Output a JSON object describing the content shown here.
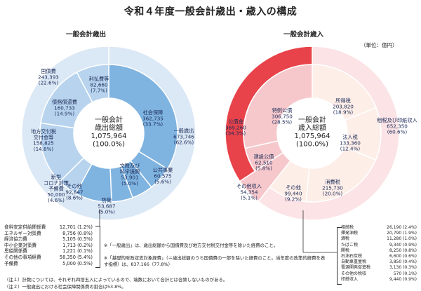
{
  "title": "令和４年度一般会計歳出・歳入の構成",
  "unit": "（単位：億円）",
  "colors": {
    "exp_inner": "#7fb3e0",
    "exp_mid": "#b7d3ee",
    "exp_outer": "#dbe8f5",
    "rev_red": "#e8434a",
    "rev_pink": "#f6c8cc",
    "rev_light": "#fbe3e6",
    "rev_peach": "#fdeee8"
  },
  "chart_data": [
    {
      "type": "pie",
      "title": "一般会計歳出",
      "center_text": [
        "一般会計",
        "歳出総額",
        "1,075,964",
        "(100.0%)"
      ],
      "total": 1075964,
      "slices": [
        {
          "label": "社会保障",
          "value": 362735,
          "percent": "33.7%",
          "ring": "inner"
        },
        {
          "label": "公共事業",
          "value": 60575,
          "percent": "5.6%",
          "ring": "inner"
        },
        {
          "label": "文教及び科学振興",
          "value": 53901,
          "percent": "5.0%",
          "ring": "inner"
        },
        {
          "label": "防衛",
          "value": 53687,
          "percent": "5.0%",
          "ring": "inner"
        },
        {
          "label": "その他",
          "value": 92847,
          "percent": "8.6%",
          "ring": "inner"
        },
        {
          "label": "新型コロナ対策予備費",
          "value": 50000,
          "percent": "4.6%",
          "ring": "mid"
        },
        {
          "label": "地方交付税交付金等",
          "value": 158825,
          "percent": "14.8%",
          "ring": "mid"
        },
        {
          "label": "債務償還費",
          "value": 160733,
          "percent": "14.9%",
          "ring": "mid"
        },
        {
          "label": "利払費等",
          "value": 82660,
          "percent": "7.7%",
          "ring": "mid"
        },
        {
          "label": "国債費",
          "value": 243393,
          "percent": "22.6%",
          "ring": "outer"
        },
        {
          "label": "一般歳出",
          "value": 673746,
          "percent": "62.6%",
          "ring": "outer"
        }
      ],
      "breakdown": [
        {
          "label": "食料安定供給関係費",
          "value": "12,701",
          "percent": "(1.2%)"
        },
        {
          "label": "エネルギー対策費",
          "value": "8,756",
          "percent": "(0.8%)"
        },
        {
          "label": "経済協力費",
          "value": "5,105",
          "percent": "(0.5%)"
        },
        {
          "label": "中小企業対策費",
          "value": "1,713",
          "percent": "(0.2%)"
        },
        {
          "label": "恩給関係費",
          "value": "1,221",
          "percent": "(0.1%)"
        },
        {
          "label": "その他の事項経費",
          "value": "58,350",
          "percent": "(5.4%)"
        },
        {
          "label": "予備費",
          "value": "5,000",
          "percent": "(0.5%)"
        }
      ]
    },
    {
      "type": "pie",
      "title": "一般会計歳入",
      "center_text": [
        "一般会計",
        "歳入総額",
        "1,075,964",
        "(100.0%)"
      ],
      "total": 1075964,
      "slices": [
        {
          "label": "所得税",
          "value": 203820,
          "percent": "18.9%",
          "ring": "inner"
        },
        {
          "label": "法人税",
          "value": 133360,
          "percent": "12.4%",
          "ring": "inner"
        },
        {
          "label": "消費税",
          "value": 215730,
          "percent": "20.0%",
          "ring": "inner"
        },
        {
          "label": "その他",
          "value": 99440,
          "percent": "9.2%",
          "ring": "inner"
        },
        {
          "label": "租税及び印紙収入",
          "value": 652350,
          "percent": "60.6%",
          "ring": "outer"
        },
        {
          "label": "その他収入",
          "value": 54354,
          "percent": "5.1%",
          "ring": "outer"
        },
        {
          "label": "建設公債",
          "value": 62510,
          "percent": "5.8%",
          "ring": "inner"
        },
        {
          "label": "特例公債",
          "value": 306750,
          "percent": "28.5%",
          "ring": "inner"
        },
        {
          "label": "公債金",
          "value": 369260,
          "percent": "34.3%",
          "ring": "outer"
        }
      ],
      "breakdown": [
        {
          "label": "相続税",
          "value": "26,190",
          "percent": "(2.4%)"
        },
        {
          "label": "揮発油税",
          "value": "20,790",
          "percent": "(1.9%)"
        },
        {
          "label": "酒税",
          "value": "11,280",
          "percent": "(1.0%)"
        },
        {
          "label": "たばこ税",
          "value": "9,340",
          "percent": "(0.9%)"
        },
        {
          "label": "関税",
          "value": "8,250",
          "percent": "(0.8%)"
        },
        {
          "label": "石油石炭税",
          "value": "6,600",
          "percent": "(0.6%)"
        },
        {
          "label": "自動車重量税",
          "value": "3,850",
          "percent": "(0.4%)"
        },
        {
          "label": "電源開発促進税",
          "value": "3,130",
          "percent": "(0.3%)"
        },
        {
          "label": "その他の税収",
          "value": "570",
          "percent": "(0.1%)"
        },
        {
          "label": "印紙収入",
          "value": "9,440",
          "percent": "(0.9%)"
        }
      ]
    }
  ],
  "notes": {
    "mid1": "※「一般歳出」は、歳出総額から国債費及び地方交付税交付金等を除いた経費のこと。",
    "mid2": "※「基礎的財政収支対象経費」（＝歳出総額のうち国債費の一部を除いた経費のこと。当年度の政策的経費を表す指標）は、837,166（77.8%）",
    "foot1": "（注１）計数については、それぞれ四捨五入によっているので、端数において合計とは合致しないものがある。",
    "foot2": "（注２）一般歳出における社会保障関係費の割合は53.8%。"
  }
}
